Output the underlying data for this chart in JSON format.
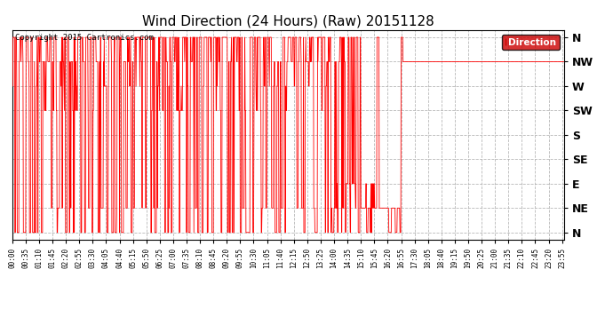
{
  "title": "Wind Direction (24 Hours) (Raw) 20151128",
  "copyright": "Copyright 2015 Cartronics.com",
  "legend_label": "Direction",
  "line_color": "#ff0000",
  "legend_bg_color": "#cc0000",
  "background_color": "#ffffff",
  "grid_color": "#b0b0b0",
  "ytick_labels": [
    "N",
    "NW",
    "W",
    "SW",
    "S",
    "SE",
    "E",
    "NE",
    "N"
  ],
  "ytick_values": [
    0,
    1,
    2,
    3,
    4,
    5,
    6,
    7,
    8
  ],
  "ylim_min": -0.3,
  "ylim_max": 8.3,
  "xlabel_fontsize": 5.5,
  "ylabel_fontsize": 9,
  "title_fontsize": 11,
  "figwidth": 6.9,
  "figheight": 3.75,
  "dpi": 100
}
